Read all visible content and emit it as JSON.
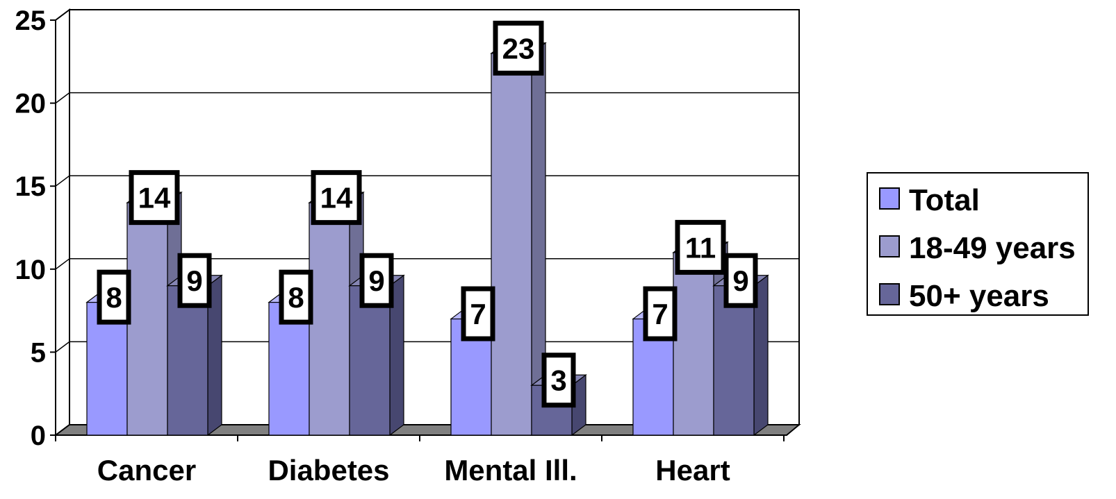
{
  "chart_data": {
    "type": "bar",
    "categories": [
      "Cancer",
      "Diabetes",
      "Mental Ill.",
      "Heart"
    ],
    "series": [
      {
        "name": "Total",
        "values": [
          8,
          8,
          7,
          7
        ]
      },
      {
        "name": "18-49 years",
        "values": [
          14,
          14,
          23,
          11
        ]
      },
      {
        "name": "50+ years",
        "values": [
          9,
          9,
          3,
          9
        ]
      }
    ],
    "ylim": [
      0,
      25
    ],
    "yticks": [
      "0",
      "5",
      "10",
      "15",
      "20",
      "25"
    ],
    "grid": true,
    "legend_position": "right",
    "three_d": true,
    "data_labels": true,
    "colors": {
      "series": [
        "#9999ff",
        "#9c9cce",
        "#666699"
      ],
      "series_side": [
        "#6d6db8",
        "#6f6f96",
        "#474770"
      ],
      "series_top": [
        "#b8b8ff",
        "#b8b8e0",
        "#8585b3"
      ],
      "floor": "#808080",
      "grid": "#000000"
    }
  }
}
